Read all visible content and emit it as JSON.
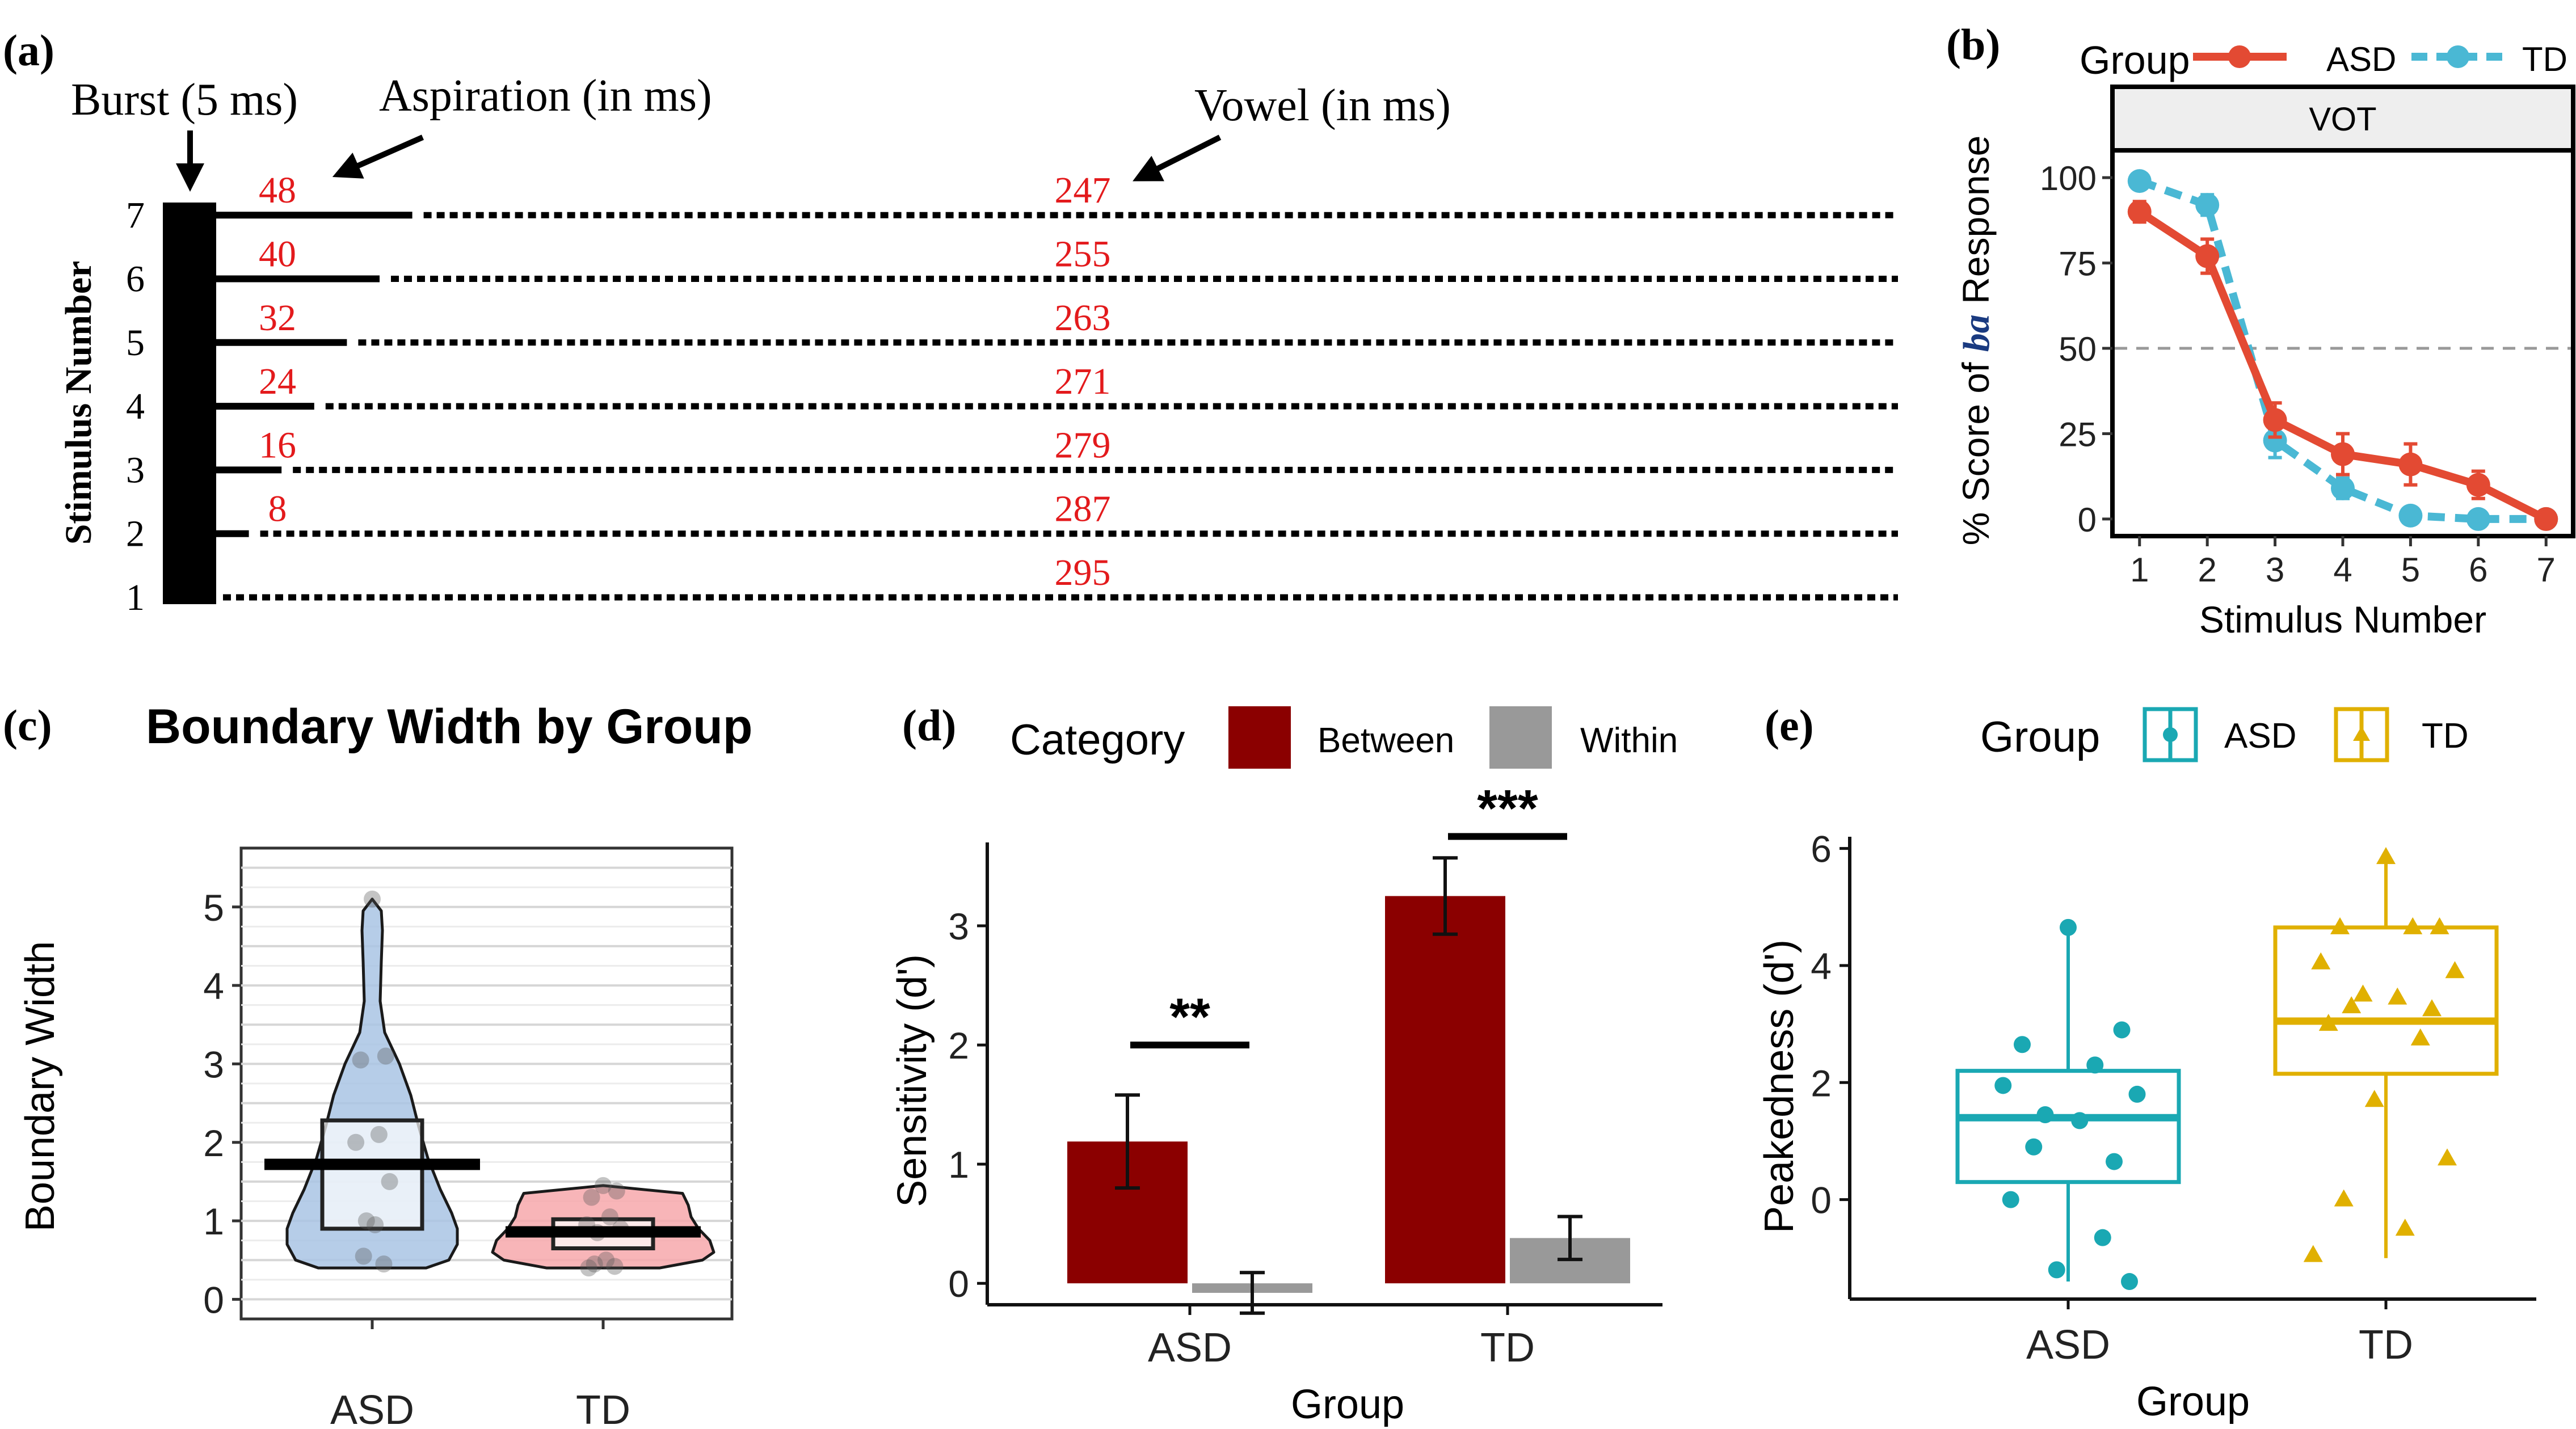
{
  "colors": {
    "asd_line": "#e34a33",
    "td_line": "#4ab8d4",
    "red_label": "#e31a1c",
    "between": "#8b0000",
    "within": "#999999",
    "asd_violin": "#a9c4e4",
    "td_violin": "#f7a8ac",
    "asd_box": "#1aa8b3",
    "td_box": "#e0b000",
    "strip_bg": "#eeeeee"
  },
  "panels": {
    "a": {
      "tag": "(a)",
      "burst_label": "Burst (5 ms)",
      "aspiration_label": "Aspiration (in ms)",
      "vowel_label": "Vowel (in ms)",
      "ylabel": "Stimulus Number",
      "stimuli": [
        {
          "num": "1",
          "aspiration": 0,
          "aspiration_text": "",
          "vowel": "295"
        },
        {
          "num": "2",
          "aspiration": 8,
          "aspiration_text": "8",
          "vowel": "287"
        },
        {
          "num": "3",
          "aspiration": 16,
          "aspiration_text": "16",
          "vowel": "279"
        },
        {
          "num": "4",
          "aspiration": 24,
          "aspiration_text": "24",
          "vowel": "271"
        },
        {
          "num": "5",
          "aspiration": 32,
          "aspiration_text": "32",
          "vowel": "263"
        },
        {
          "num": "6",
          "aspiration": 40,
          "aspiration_text": "40",
          "vowel": "255"
        },
        {
          "num": "7",
          "aspiration": 48,
          "aspiration_text": "48",
          "vowel": "247"
        }
      ]
    },
    "b": {
      "tag": "(b)",
      "legend_title": "Group",
      "legend_asd": "ASD",
      "legend_td": "TD",
      "strip": "VOT",
      "ylabel_pre": "% Score of ",
      "ylabel_em": "ba",
      "ylabel_post": " Response",
      "xlabel": "Stimulus Number",
      "yticks": [
        "0",
        "25",
        "50",
        "75",
        "100"
      ],
      "xticks": [
        "1",
        "2",
        "3",
        "4",
        "5",
        "6",
        "7"
      ]
    },
    "c": {
      "tag": "(c)",
      "title": "Boundary Width by Group",
      "ylabel": "Boundary Width",
      "yticks": [
        "0",
        "1",
        "2",
        "3",
        "4",
        "5"
      ],
      "xticks": [
        "ASD",
        "TD"
      ]
    },
    "d": {
      "tag": "(d)",
      "legend_title": "Category",
      "legend_between": "Between",
      "legend_within": "Within",
      "ylabel": "Sensitivity (d')",
      "xlabel": "Group",
      "yticks": [
        "0",
        "1",
        "2",
        "3"
      ],
      "xticks": [
        "ASD",
        "TD"
      ],
      "sig_asd": "**",
      "sig_td": "***"
    },
    "e": {
      "tag": "(e)",
      "legend_title": "Group",
      "legend_asd": "ASD",
      "legend_td": "TD",
      "ylabel": "Peakedness (d')",
      "xlabel": "Group",
      "yticks": [
        "0",
        "2",
        "4",
        "6"
      ],
      "xticks": [
        "ASD",
        "TD"
      ]
    }
  },
  "chart_data": [
    {
      "panel": "a",
      "type": "table",
      "columns": [
        "Stimulus Number",
        "Burst (ms)",
        "Aspiration (ms)",
        "Vowel (ms)"
      ],
      "rows": [
        [
          1,
          5,
          0,
          295
        ],
        [
          2,
          5,
          8,
          287
        ],
        [
          3,
          5,
          16,
          279
        ],
        [
          4,
          5,
          24,
          271
        ],
        [
          5,
          5,
          32,
          263
        ],
        [
          6,
          5,
          40,
          255
        ],
        [
          7,
          5,
          48,
          247
        ]
      ]
    },
    {
      "panel": "b",
      "type": "line",
      "title": "VOT",
      "xlabel": "Stimulus Number",
      "ylabel": "% Score of ba Response",
      "x": [
        1,
        2,
        3,
        4,
        5,
        6,
        7
      ],
      "xlim": [
        0.6,
        7.4
      ],
      "ylim": [
        -5,
        108
      ],
      "reference_line": 50,
      "series": [
        {
          "name": "ASD",
          "values": [
            90,
            77,
            29,
            19,
            16,
            10,
            0
          ],
          "errors": [
            3,
            5,
            5,
            6,
            6,
            4,
            1
          ]
        },
        {
          "name": "TD",
          "values": [
            99,
            92,
            23,
            9,
            1,
            0,
            0
          ],
          "errors": [
            1,
            3,
            5,
            3,
            1,
            0.5,
            0.5
          ]
        }
      ]
    },
    {
      "panel": "c",
      "type": "violin",
      "title": "Boundary Width by Group",
      "ylabel": "Boundary Width",
      "categories": [
        "ASD",
        "TD"
      ],
      "ylim": [
        -0.25,
        5.75
      ],
      "box": [
        {
          "group": "ASD",
          "q1": 0.9,
          "mean": 1.72,
          "q3": 2.28,
          "min": 0.4,
          "max": 5.1
        },
        {
          "group": "TD",
          "q1": 0.65,
          "mean": 0.86,
          "q3": 1.02,
          "min": 0.4,
          "max": 1.45
        }
      ],
      "points": [
        {
          "group": "ASD",
          "values": [
            5.1,
            3.1,
            3.05,
            2.1,
            2.0,
            1.5,
            1.0,
            0.95,
            0.55,
            0.45
          ]
        },
        {
          "group": "TD",
          "values": [
            1.45,
            1.38,
            1.3,
            1.05,
            0.95,
            0.9,
            0.85,
            0.5,
            0.45,
            0.42,
            0.4
          ]
        }
      ]
    },
    {
      "panel": "d",
      "type": "bar",
      "xlabel": "Group",
      "ylabel": "Sensitivity (d')",
      "categories": [
        "ASD",
        "TD"
      ],
      "ylim": [
        -0.18,
        3.7
      ],
      "series": [
        {
          "name": "Between",
          "values": [
            1.19,
            3.25
          ],
          "errors": [
            0.39,
            0.32
          ]
        },
        {
          "name": "Within",
          "values": [
            -0.08,
            0.38
          ],
          "errors": [
            0.17,
            0.18
          ]
        }
      ],
      "significance": [
        {
          "group": "ASD",
          "label": "**",
          "y": 2.0
        },
        {
          "group": "TD",
          "label": "***",
          "y": 3.75
        }
      ]
    },
    {
      "panel": "e",
      "type": "box",
      "xlabel": "Group",
      "ylabel": "Peakedness (d')",
      "categories": [
        "ASD",
        "TD"
      ],
      "ylim": [
        -1.7,
        6.2
      ],
      "boxes": [
        {
          "group": "ASD",
          "lower": -1.4,
          "q1": 0.3,
          "median": 1.4,
          "q3": 2.2,
          "upper": 4.6
        },
        {
          "group": "TD",
          "lower": -1.0,
          "q1": 2.15,
          "median": 3.05,
          "q3": 4.65,
          "upper": 5.85
        }
      ],
      "points": [
        {
          "group": "ASD",
          "values": [
            4.65,
            2.9,
            2.65,
            2.3,
            1.95,
            1.8,
            1.45,
            1.35,
            0.9,
            0.65,
            0.0,
            -0.65,
            -1.2,
            -1.4
          ]
        },
        {
          "group": "TD",
          "values": [
            5.85,
            4.65,
            4.65,
            4.65,
            4.05,
            3.9,
            3.5,
            3.45,
            3.3,
            3.25,
            3.0,
            2.75,
            1.7,
            0.7,
            0.0,
            -0.5,
            -0.95
          ]
        }
      ]
    }
  ]
}
